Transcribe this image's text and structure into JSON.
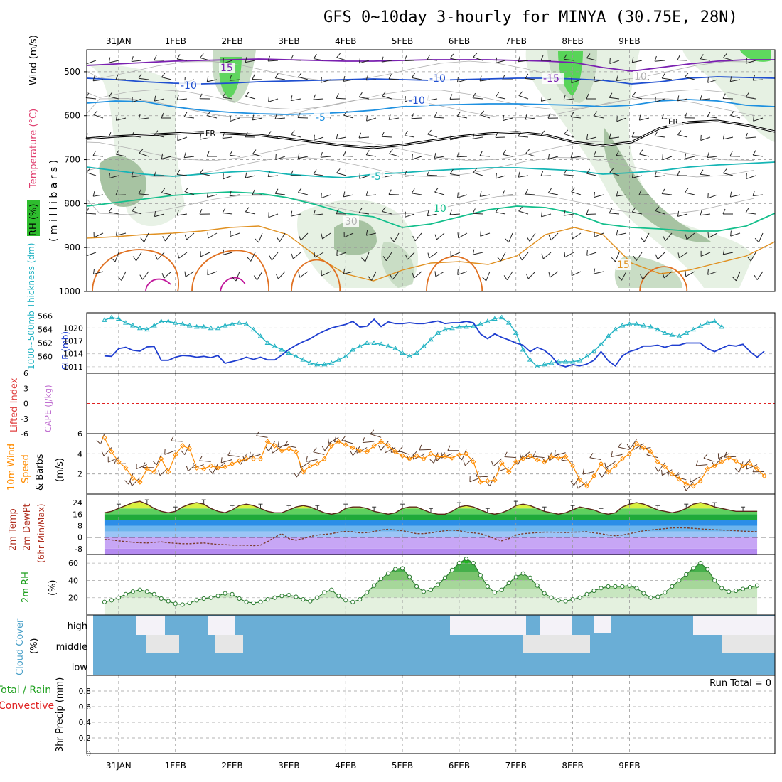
{
  "title": "GFS 0~10day 3-hourly for MINYA (30.75E, 28N)",
  "dates": [
    "31JAN",
    "1FEB",
    "2FEB",
    "3FEB",
    "4FEB",
    "5FEB",
    "6FEB",
    "7FEB",
    "8FEB",
    "9FEB"
  ],
  "run_total": "Run Total = 0",
  "colors": {
    "frame": "#000000",
    "grid": "#9a9a9a",
    "rh": "#2e7d32",
    "temp_line": "#5a2a1a",
    "rh_fill": "#4caf50",
    "cloud": "#6aaed6",
    "cloud_gap": "#f4f2f8",
    "wind": "#ff8c00",
    "thick": "#22b3c3",
    "slp": "#1f3ed0"
  },
  "chart_data": [
    {
      "type": "line",
      "panel": "upper_air",
      "ylabel_parts": [
        "RH (%)",
        "Temperature (°C)",
        "Wind (m/s)"
      ],
      "ylabel2": "( m i l l i b a r s )",
      "yticks": [
        500,
        600,
        700,
        800,
        900,
        1000
      ],
      "ylim": [
        1000,
        450
      ],
      "contour_labels": [
        "15",
        "-10",
        "-10",
        "-5",
        "FR",
        "-5",
        "10",
        "30",
        "15",
        "-15",
        "10",
        "-10",
        "FR"
      ]
    },
    {
      "type": "line",
      "panel": "thickness_slp",
      "ylabel_left": "1000~500mb Thickness (dm)",
      "ylabel_right": "SLP (mb)",
      "yticks_left": [
        560,
        562,
        564,
        566
      ],
      "yticks_right": [
        1011,
        1014,
        1017,
        1020
      ],
      "series": [
        {
          "name": "1000~500mb Thickness (dm)",
          "values": [
            565.4,
            565.8,
            565.6,
            565.0,
            564.6,
            564.2,
            564.0,
            564.6,
            565.2,
            565.2,
            565.0,
            564.8,
            564.6,
            564.4,
            564.4,
            564.2,
            564.2,
            564.6,
            564.8,
            565.0,
            564.8,
            564.0,
            563.0,
            562.0,
            561.5,
            561.0,
            560.5,
            560.0,
            559.5,
            559.0,
            558.8,
            558.8,
            559.0,
            559.5,
            560.0,
            561.0,
            561.5,
            562.0,
            562.0,
            561.8,
            561.5,
            561.2,
            560.5,
            560.0,
            560.5,
            561.5,
            562.5,
            563.5,
            564.0,
            564.2,
            564.4,
            564.4,
            564.5,
            564.8,
            565.2,
            565.6,
            565.8,
            565.0,
            563.5,
            561.0,
            559.5,
            558.5,
            558.8,
            559.0,
            559.2,
            559.2,
            559.2,
            559.4,
            560.0,
            560.8,
            561.8,
            563.0,
            564.0,
            564.6,
            564.8,
            564.8,
            564.6,
            564.4,
            564.0,
            563.5,
            563.2,
            563.0,
            563.5,
            564.0,
            564.5,
            565.0,
            565.2,
            564.4
          ]
        },
        {
          "name": "SLP (mb)",
          "values": [
            1013.5,
            1013.4,
            1015.2,
            1015.5,
            1014.8,
            1014.6,
            1015.6,
            1015.7,
            1012.5,
            1012.5,
            1013.2,
            1013.6,
            1013.5,
            1013.2,
            1013.4,
            1013.1,
            1013.6,
            1011.8,
            1012.2,
            1012.6,
            1013.2,
            1012.7,
            1013.2,
            1012.6,
            1012.6,
            1013.7,
            1015.0,
            1016.0,
            1016.8,
            1017.5,
            1018.5,
            1019.3,
            1020.0,
            1020.4,
            1020.8,
            1021.5,
            1020.2,
            1020.4,
            1022.0,
            1020.3,
            1021.4,
            1021.0,
            1021.0,
            1021.2,
            1021.0,
            1021.0,
            1021.3,
            1021.6,
            1021.0,
            1021.2,
            1021.2,
            1021.5,
            1021.2,
            1018.6,
            1017.5,
            1018.6,
            1017.8,
            1017.2,
            1016.5,
            1016.0,
            1014.5,
            1015.5,
            1014.8,
            1013.5,
            1011.5,
            1011.0,
            1011.5,
            1011.2,
            1011.6,
            1012.5,
            1014.5,
            1012.4,
            1011.2,
            1013.5,
            1014.5,
            1015.0,
            1015.8,
            1015.8,
            1016.0,
            1015.5,
            1016.0,
            1016.0,
            1016.5,
            1016.5,
            1016.5,
            1015.2,
            1014.5,
            1015.3,
            1016.0,
            1015.8,
            1016.2,
            1014.5,
            1013.2,
            1014.6
          ]
        }
      ]
    },
    {
      "type": "line",
      "panel": "stability",
      "ylabel_left": "Lifted Index",
      "ylabel_right": "CAPE (J/kg)",
      "yticks": [
        -6,
        -3,
        0,
        3,
        6
      ],
      "values": []
    },
    {
      "type": "line",
      "panel": "wind10m",
      "ylabel_parts": [
        "10m Wind",
        "Speed",
        "& Barbs",
        "(m/s)"
      ],
      "yticks": [
        2,
        4,
        6
      ],
      "ylim": [
        0,
        6
      ],
      "values": [
        5.6,
        4.2,
        3.2,
        2.6,
        1.6,
        1.2,
        2.5,
        2.2,
        3.5,
        2.2,
        3.9,
        4.8,
        4.5,
        2.6,
        2.5,
        2.8,
        2.6,
        2.7,
        3.0,
        3.3,
        3.5,
        3.5,
        3.5,
        5.2,
        4.8,
        4.3,
        4.5,
        4.2,
        2.2,
        2.8,
        3.0,
        3.5,
        4.8,
        5.2,
        4.9,
        4.6,
        4.3,
        4.2,
        4.8,
        5.2,
        4.8,
        4.2,
        3.8,
        3.5,
        3.8,
        3.5,
        4.0,
        3.7,
        3.7,
        3.6,
        3.9,
        4.0,
        3.2,
        1.2,
        1.3,
        1.4,
        3.1,
        2.2,
        3.2,
        3.5,
        3.8,
        3.4,
        3.2,
        3.7,
        3.6,
        3.7,
        2.8,
        1.4,
        0.8,
        1.8,
        3.0,
        2.2,
        2.8,
        3.5,
        4.0,
        5.0,
        4.6,
        4.2,
        3.2,
        2.7,
        2.0,
        1.5,
        1.0,
        0.8,
        1.3,
        2.5,
        2.8,
        3.2,
        3.6,
        3.3,
        2.8,
        3.0,
        2.5,
        1.8
      ]
    },
    {
      "type": "area",
      "panel": "temp_dewpt",
      "ylabel_parts": [
        "2m Temp",
        "2m DewPt",
        "(6hr Min/Max)"
      ],
      "yticks": [
        -8,
        0,
        8,
        16,
        24
      ],
      "ylim": [
        -12,
        30
      ],
      "series": [
        {
          "name": "2m Temp",
          "values": [
            17,
            18,
            20,
            22,
            24,
            25,
            23,
            20,
            18,
            17,
            18,
            21,
            23,
            24,
            23,
            20,
            18,
            17,
            19,
            22,
            23,
            22,
            20,
            18,
            17,
            17,
            19,
            21,
            22,
            21,
            19,
            17,
            16,
            17,
            20,
            21,
            21,
            20,
            18,
            17,
            16,
            17,
            20,
            21,
            21,
            19,
            17,
            16,
            16,
            18,
            21,
            22,
            21,
            19,
            17,
            16,
            17,
            19,
            22,
            23,
            22,
            20,
            18,
            17,
            16,
            17,
            19,
            21,
            20,
            19,
            17,
            16,
            17,
            21,
            23,
            24,
            23,
            21,
            19,
            18,
            17,
            18,
            20,
            23,
            24,
            23,
            21,
            20,
            19,
            18,
            18,
            18,
            18
          ]
        },
        {
          "name": "2m DewPt",
          "values": [
            -1.5,
            -1.8,
            -2.5,
            -3,
            -3.5,
            -3.8,
            -4,
            -3.5,
            -3.2,
            -3.8,
            -4.2,
            -4.5,
            -4.5,
            -4.2,
            -4,
            -4.5,
            -5,
            -5.2,
            -5.5,
            -5.5,
            -5.5,
            -5.8,
            -5.5,
            -3,
            0,
            2.5,
            -1,
            -2,
            -1,
            0.5,
            1.5,
            2,
            2.5,
            3.5,
            4,
            3.8,
            3,
            3.2,
            4,
            5,
            5.5,
            5,
            4.5,
            3.5,
            2.5,
            2.5,
            3,
            3.8,
            4.5,
            5,
            4.5,
            3.5,
            3,
            2.5,
            1,
            -1,
            -2.5,
            -1,
            1.5,
            2.5,
            2.8,
            3.2,
            3.5,
            3.5,
            3.4,
            3.2,
            3.5,
            3.6,
            3.8,
            3,
            2.5,
            1.5,
            1,
            1.5,
            2.5,
            3.5,
            4.5,
            5,
            5.5,
            6,
            6.5,
            6.6,
            6.5,
            6.2,
            5.8,
            5.5,
            5.2,
            5,
            4.8,
            4.5,
            4.2,
            4,
            3.8
          ]
        }
      ]
    },
    {
      "type": "area",
      "panel": "rh2m",
      "ylabel_parts": [
        "2m RH",
        "(%)"
      ],
      "yticks": [
        20,
        40,
        60
      ],
      "ylim": [
        0,
        70
      ],
      "values": [
        15,
        17,
        20,
        24,
        27,
        29,
        27,
        24,
        19,
        16,
        13,
        12,
        14,
        17,
        19,
        20,
        22,
        25,
        24,
        19,
        15,
        14,
        15,
        18,
        20,
        22,
        23,
        21,
        18,
        16,
        20,
        26,
        29,
        22,
        17,
        15,
        18,
        26,
        34,
        42,
        48,
        53,
        54,
        44,
        33,
        27,
        29,
        35,
        43,
        52,
        60,
        65,
        60,
        46,
        33,
        26,
        29,
        37,
        44,
        48,
        43,
        34,
        25,
        20,
        17,
        16,
        18,
        20,
        24,
        28,
        31,
        33,
        33,
        33,
        34,
        31,
        25,
        20,
        21,
        26,
        33,
        40,
        47,
        54,
        60,
        53,
        40,
        31,
        27,
        28,
        30,
        32,
        34
      ]
    },
    {
      "type": "heatmap",
      "panel": "cloud_cover",
      "ylabel_parts": [
        "Cloud Cover",
        "(%)"
      ],
      "rows": [
        "high",
        "middle",
        "low"
      ]
    },
    {
      "type": "bar",
      "panel": "precip",
      "ylabel_parts": [
        "Total / Rain",
        "Convective",
        "3hr Precip (mm)"
      ],
      "yticks": [
        0,
        0.2,
        0.4,
        0.6,
        0.8
      ],
      "ylim": [
        0,
        1
      ],
      "values": []
    }
  ]
}
